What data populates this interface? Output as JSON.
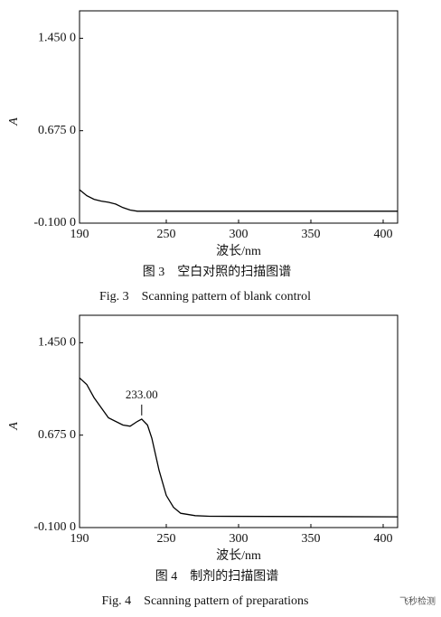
{
  "chart_data": [
    {
      "type": "line",
      "ylabel": "A",
      "xlabel": "波长/nm",
      "caption_cn": "图 3　空白对照的扫描图谱",
      "caption_en": "Fig. 3　Scanning pattern of blank control",
      "x": [
        190,
        195,
        200,
        205,
        210,
        215,
        220,
        225,
        230,
        240,
        300,
        410
      ],
      "values": [
        0.18,
        0.13,
        0.1,
        0.085,
        0.075,
        0.06,
        0.03,
        0.01,
        0.0,
        0.0,
        0.0,
        0.0
      ],
      "color": "#000000",
      "xlim": [
        190,
        410
      ],
      "xticks": [
        190,
        250,
        300,
        350,
        400
      ],
      "ylim": [
        -0.1,
        1.68
      ],
      "yticks": [
        {
          "value": -0.1,
          "label": "-0.100 0"
        },
        {
          "value": 0.675,
          "label": "0.675 0"
        },
        {
          "value": 1.45,
          "label": "1.450 0"
        }
      ]
    },
    {
      "type": "line",
      "ylabel": "A",
      "xlabel": "波长/nm",
      "caption_cn": "图 4　制剂的扫描图谱",
      "caption_en": "Fig. 4　Scanning pattern of preparations",
      "x": [
        190,
        195,
        200,
        210,
        220,
        225,
        230,
        233,
        237,
        240,
        245,
        250,
        255,
        260,
        270,
        280,
        410
      ],
      "values": [
        1.155,
        1.1,
        0.99,
        0.82,
        0.76,
        0.75,
        0.79,
        0.81,
        0.76,
        0.65,
        0.38,
        0.17,
        0.07,
        0.02,
        0.0,
        -0.005,
        -0.01
      ],
      "color": "#000000",
      "xlim": [
        190,
        410
      ],
      "xticks": [
        190,
        250,
        300,
        350,
        400
      ],
      "ylim": [
        -0.1,
        1.68
      ],
      "yticks": [
        {
          "value": -0.1,
          "label": "-0.100 0"
        },
        {
          "value": 0.675,
          "label": "0.675 0"
        },
        {
          "value": 1.45,
          "label": "1.450 0"
        }
      ],
      "annotation": {
        "text": "233.00",
        "x": 233,
        "y": 0.81
      }
    }
  ],
  "watermark": "飞秒检测"
}
